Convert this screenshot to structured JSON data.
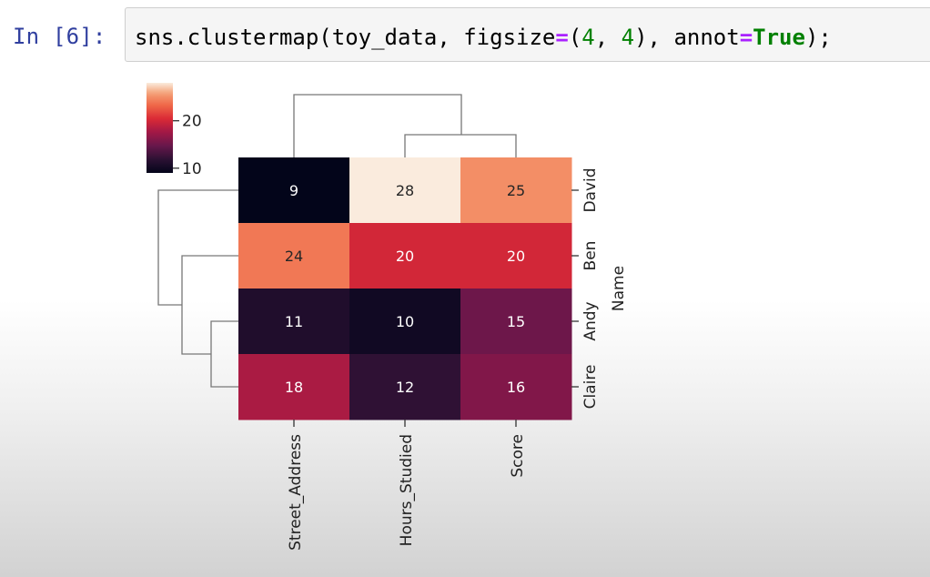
{
  "prompt": "In [6]:",
  "code": {
    "segments": [
      {
        "text": "sns.clustermap(toy_data, figsize",
        "cls": ""
      },
      {
        "text": "=",
        "cls": "tok-op"
      },
      {
        "text": "(",
        "cls": ""
      },
      {
        "text": "4",
        "cls": "tok-num"
      },
      {
        "text": ", ",
        "cls": ""
      },
      {
        "text": "4",
        "cls": "tok-num"
      },
      {
        "text": "), annot",
        "cls": ""
      },
      {
        "text": "=",
        "cls": "tok-op"
      },
      {
        "text": "True",
        "cls": "tok-kw"
      },
      {
        "text": ");",
        "cls": ""
      }
    ]
  },
  "chart_data": {
    "type": "heatmap",
    "title": "",
    "columns": [
      "Street_Address",
      "Hours_Studied",
      "Score"
    ],
    "rows": [
      "David",
      "Ben",
      "Andy",
      "Claire"
    ],
    "values": [
      [
        9,
        28,
        25
      ],
      [
        24,
        20,
        20
      ],
      [
        11,
        10,
        15
      ],
      [
        18,
        12,
        16
      ]
    ],
    "row_axis_label": "Name",
    "colorbar": {
      "range": [
        9,
        28
      ],
      "ticks": [
        10,
        20
      ],
      "colormap": "rocket",
      "placement": "top-left"
    },
    "annotations": true,
    "row_dendrogram": true,
    "column_dendrogram": true
  }
}
